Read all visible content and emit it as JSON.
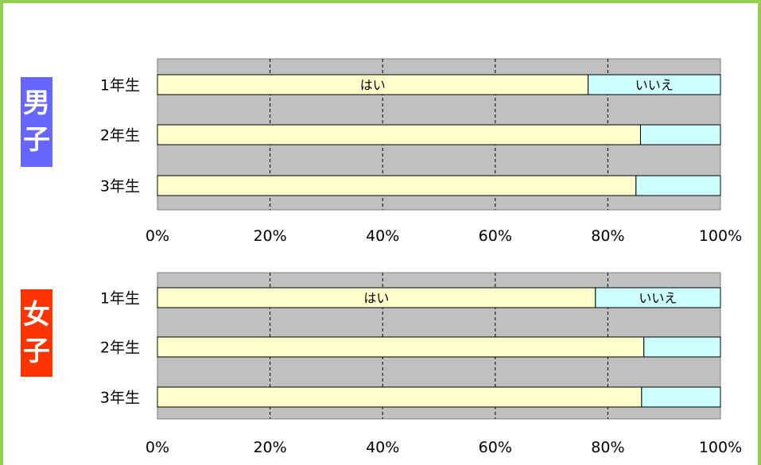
{
  "colors": {
    "frame": "#92d050",
    "boys": "#6666ff",
    "girls": "#ff3300",
    "yes": "#ffffcc",
    "no": "#ccffff",
    "plot_bg": "#c0c0c0"
  },
  "labels": {
    "boys": "男子",
    "girls": "女子"
  },
  "chart_data": [
    {
      "type": "bar",
      "orientation": "horizontal",
      "stacked": "percent",
      "group": "男子",
      "categories": [
        "1年生",
        "2年生",
        "3年生"
      ],
      "series": [
        {
          "name": "はい",
          "values": [
            76.5,
            85.8,
            85.0
          ]
        },
        {
          "name": "いいえ",
          "values": [
            23.5,
            14.2,
            15.0
          ]
        }
      ],
      "series_labels_on": "1年生",
      "xlim": [
        0,
        100
      ],
      "xticks": [
        "0%",
        "20%",
        "40%",
        "60%",
        "80%",
        "100%"
      ],
      "grid": "vertical dashed"
    },
    {
      "type": "bar",
      "orientation": "horizontal",
      "stacked": "percent",
      "group": "女子",
      "categories": [
        "1年生",
        "2年生",
        "3年生"
      ],
      "series": [
        {
          "name": "はい",
          "values": [
            77.8,
            86.4,
            86.0
          ]
        },
        {
          "name": "いいえ",
          "values": [
            22.2,
            13.6,
            14.0
          ]
        }
      ],
      "series_labels_on": "1年生",
      "xlim": [
        0,
        100
      ],
      "xticks": [
        "0%",
        "20%",
        "40%",
        "60%",
        "80%",
        "100%"
      ],
      "grid": "vertical dashed"
    }
  ]
}
